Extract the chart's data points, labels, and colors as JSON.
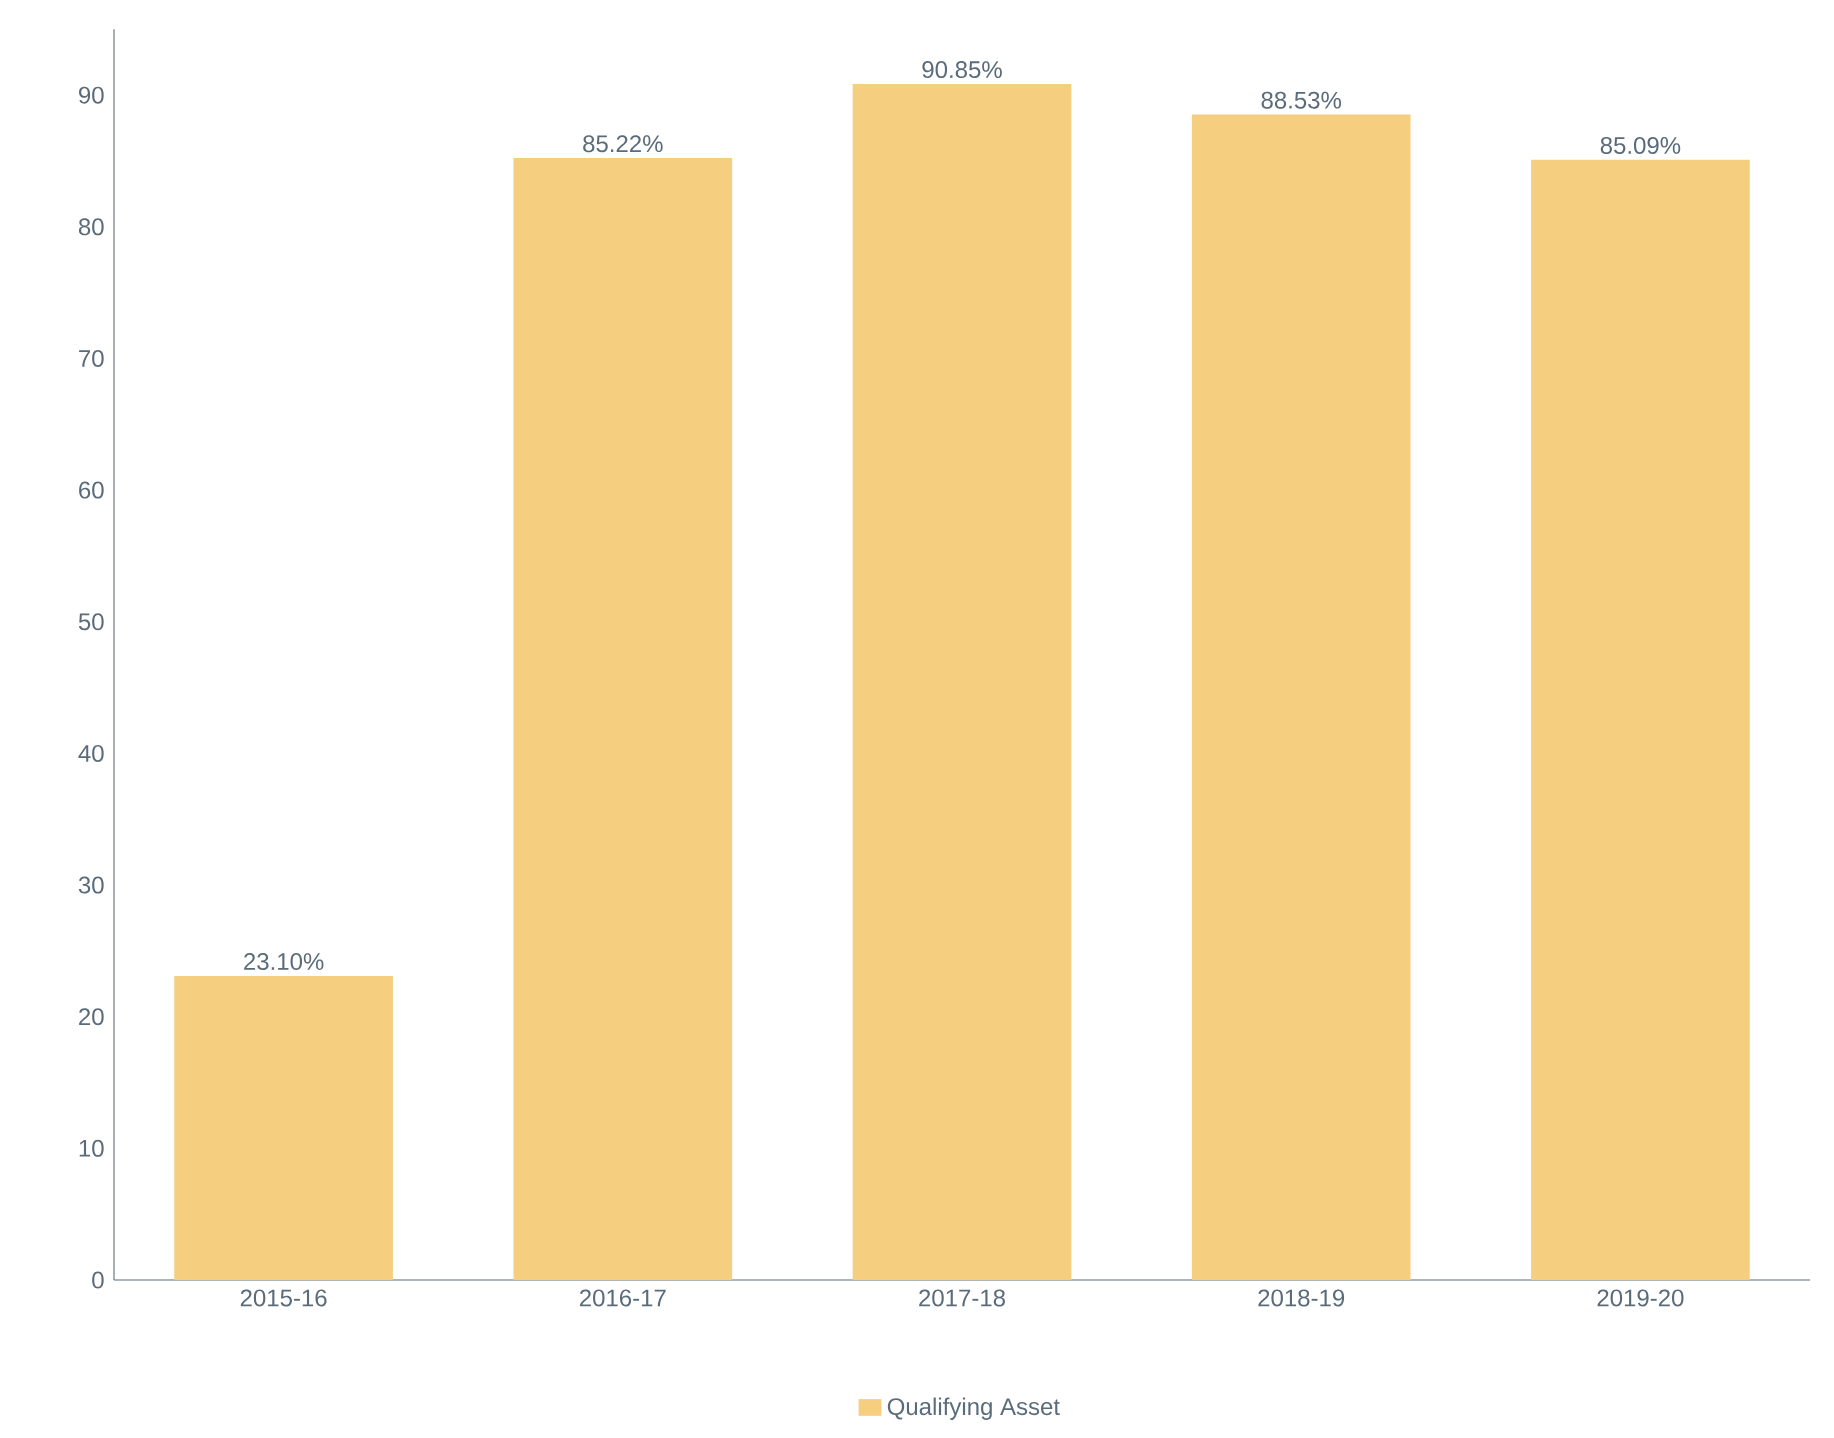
{
  "chart_data": {
    "type": "bar",
    "categories": [
      "2015-16",
      "2016-17",
      "2017-18",
      "2018-19",
      "2019-20"
    ],
    "series": [
      {
        "name": "Qualifying Asset",
        "color": "#f5cf7f",
        "values": [
          23.1,
          85.22,
          90.85,
          88.53,
          85.09
        ],
        "value_labels": [
          "23.10%",
          "85.22%",
          "90.85%",
          "88.53%",
          "85.09%"
        ]
      }
    ],
    "ylim": [
      0,
      95
    ],
    "yticks": [
      0,
      10,
      20,
      30,
      40,
      50,
      60,
      70,
      80,
      90
    ],
    "grid": false,
    "legend": "bottom"
  }
}
